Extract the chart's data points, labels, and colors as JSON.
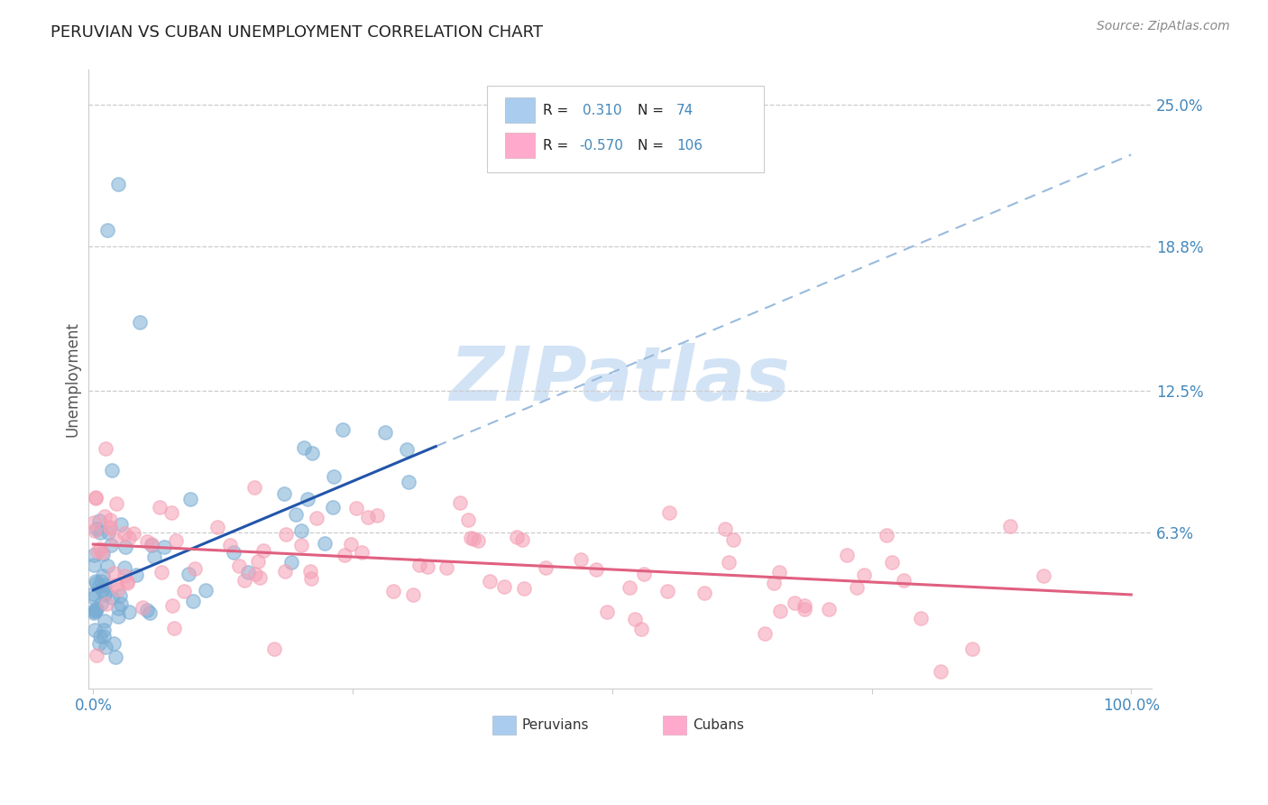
{
  "title": "PERUVIAN VS CUBAN UNEMPLOYMENT CORRELATION CHART",
  "source": "Source: ZipAtlas.com",
  "ylabel": "Unemployment",
  "peruvian_R": 0.31,
  "peruvian_N": 74,
  "cuban_R": -0.57,
  "cuban_N": 106,
  "peruvian_color": "#7aadd4",
  "cuban_color": "#f5a0b5",
  "peruvian_line_color": "#2255aa",
  "cuban_line_color": "#e06080",
  "dashed_line_color": "#99bbdd",
  "background_color": "#ffffff",
  "title_color": "#222222",
  "axis_label_color": "#4488bb",
  "grid_color": "#cccccc",
  "watermark_text_color": "#ddeeff",
  "legend_text_dark": "#222222",
  "legend_text_blue": "#4488bb",
  "legend_box_peru": "#aaccee",
  "legend_box_cuba": "#ffaacc",
  "source_color": "#888888",
  "seed": 12
}
